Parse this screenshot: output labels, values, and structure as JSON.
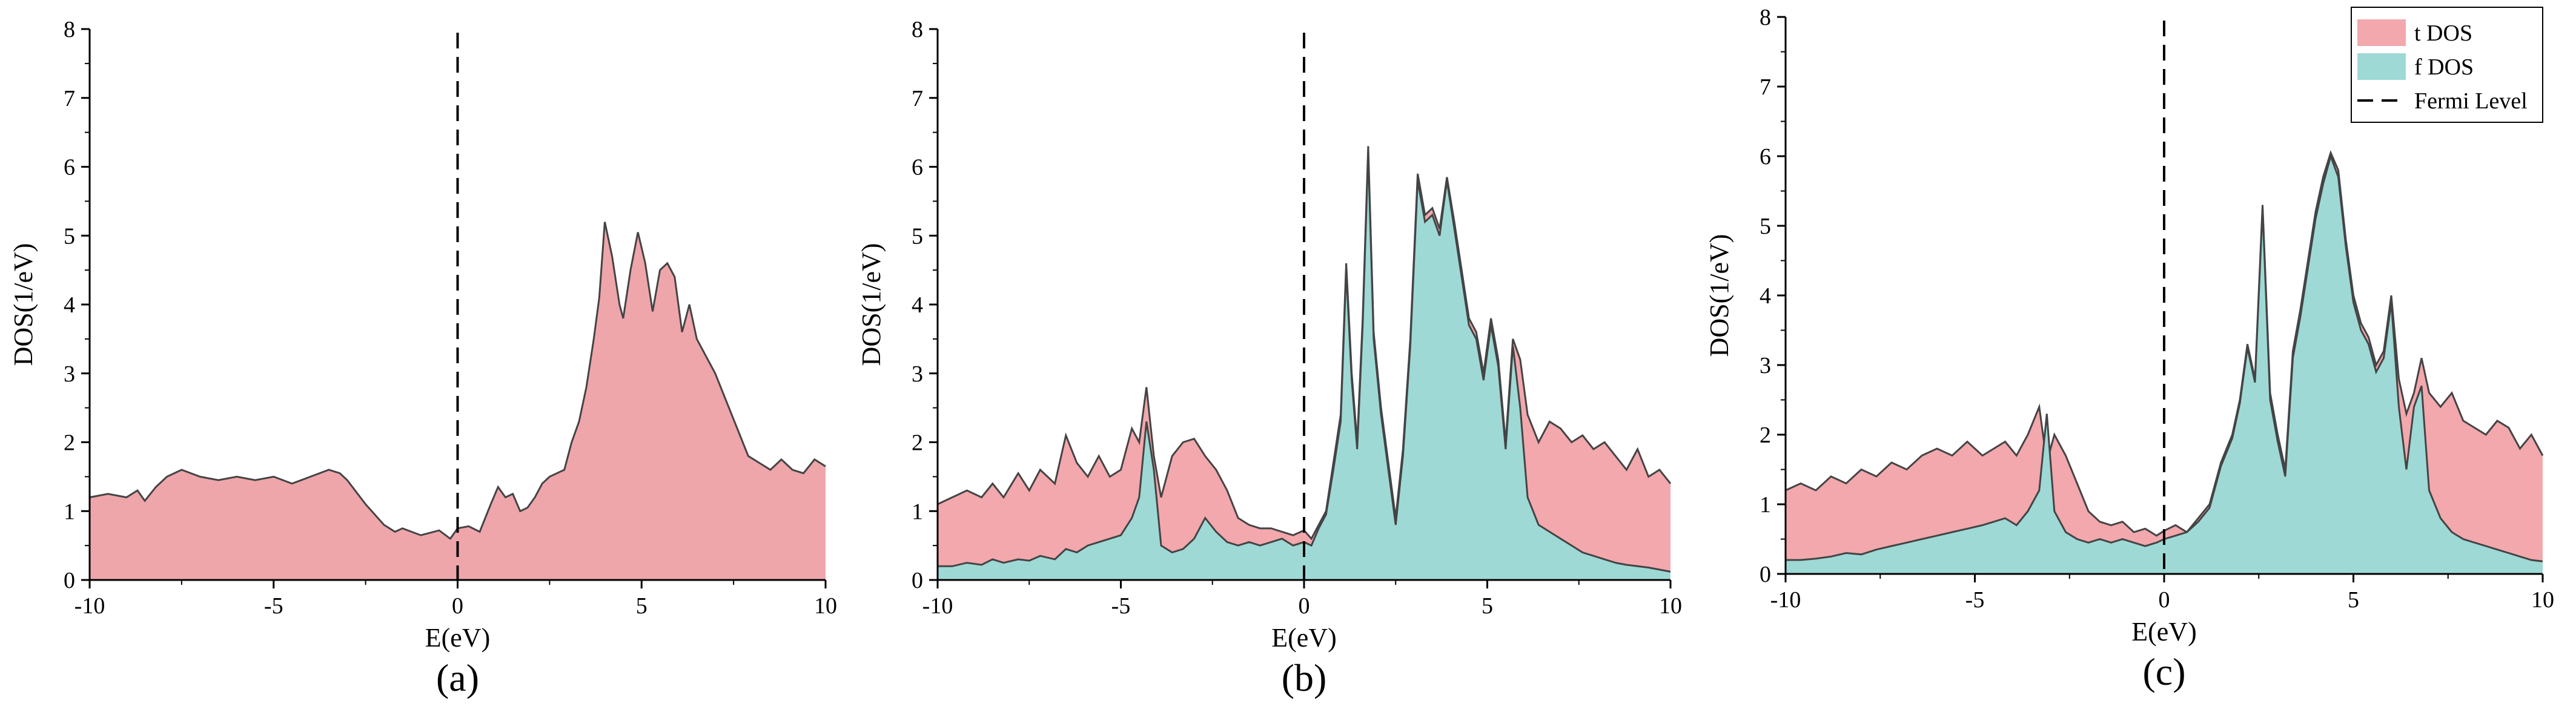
{
  "chart_data": [
    {
      "type": "area",
      "panel_label": "(a)",
      "xlabel": "E(eV)",
      "ylabel": "DOS(1/eV)",
      "xlim": [
        -10,
        10
      ],
      "ylim": [
        0,
        8
      ],
      "xticks": [
        -10,
        -5,
        0,
        5,
        10
      ],
      "yticks": [
        0,
        1,
        2,
        3,
        4,
        5,
        6,
        7,
        8
      ],
      "fermi_level": 0,
      "grid": false,
      "series": [
        {
          "key": "t",
          "color": "#eea6ab",
          "x": [
            -10,
            -9.5,
            -9,
            -8.7,
            -8.5,
            -8.2,
            -7.9,
            -7.5,
            -7,
            -6.5,
            -6,
            -5.5,
            -5,
            -4.5,
            -4,
            -3.5,
            -3.2,
            -3,
            -2.5,
            -2,
            -1.7,
            -1.5,
            -1,
            -0.5,
            -0.2,
            0,
            0.3,
            0.6,
            0.9,
            1.1,
            1.3,
            1.5,
            1.7,
            1.9,
            2.1,
            2.3,
            2.5,
            2.7,
            2.9,
            3.1,
            3.3,
            3.5,
            3.7,
            3.85,
            4.0,
            4.2,
            4.4,
            4.5,
            4.7,
            4.9,
            5.1,
            5.3,
            5.5,
            5.7,
            5.9,
            6.1,
            6.3,
            6.5,
            6.7,
            7.0,
            7.3,
            7.6,
            7.9,
            8.2,
            8.5,
            8.8,
            9.1,
            9.4,
            9.7,
            10
          ],
          "values": [
            1.2,
            1.25,
            1.2,
            1.3,
            1.15,
            1.35,
            1.5,
            1.6,
            1.5,
            1.45,
            1.5,
            1.45,
            1.5,
            1.4,
            1.5,
            1.6,
            1.55,
            1.45,
            1.1,
            0.8,
            0.7,
            0.75,
            0.65,
            0.72,
            0.6,
            0.75,
            0.78,
            0.7,
            1.1,
            1.35,
            1.2,
            1.25,
            1.0,
            1.05,
            1.2,
            1.4,
            1.5,
            1.55,
            1.6,
            2.0,
            2.3,
            2.8,
            3.5,
            4.1,
            5.2,
            4.7,
            4.0,
            3.8,
            4.5,
            5.05,
            4.6,
            3.9,
            4.5,
            4.6,
            4.4,
            3.6,
            4.0,
            3.5,
            3.3,
            3.0,
            2.6,
            2.2,
            1.8,
            1.7,
            1.6,
            1.75,
            1.6,
            1.55,
            1.75,
            1.65
          ]
        }
      ]
    },
    {
      "type": "area",
      "panel_label": "(b)",
      "xlabel": "E(eV)",
      "ylabel": "DOS(1/eV)",
      "xlim": [
        -10,
        10
      ],
      "ylim": [
        0,
        8
      ],
      "xticks": [
        -10,
        -5,
        0,
        5,
        10
      ],
      "yticks": [
        0,
        1,
        2,
        3,
        4,
        5,
        6,
        7,
        8
      ],
      "fermi_level": 0,
      "grid": false,
      "series": [
        {
          "key": "t",
          "color": "#f2a8ad",
          "x": [
            -10,
            -9.6,
            -9.2,
            -8.8,
            -8.5,
            -8.2,
            -7.8,
            -7.5,
            -7.2,
            -6.8,
            -6.5,
            -6.2,
            -5.9,
            -5.6,
            -5.3,
            -5.0,
            -4.7,
            -4.5,
            -4.3,
            -4.1,
            -3.9,
            -3.6,
            -3.3,
            -3.0,
            -2.7,
            -2.4,
            -2.1,
            -1.8,
            -1.5,
            -1.2,
            -0.9,
            -0.6,
            -0.3,
            0,
            0.2,
            0.4,
            0.6,
            0.8,
            1.0,
            1.15,
            1.3,
            1.45,
            1.6,
            1.75,
            1.9,
            2.1,
            2.3,
            2.5,
            2.7,
            2.9,
            3.1,
            3.3,
            3.5,
            3.7,
            3.9,
            4.1,
            4.3,
            4.5,
            4.7,
            4.9,
            5.1,
            5.3,
            5.5,
            5.7,
            5.9,
            6.1,
            6.4,
            6.7,
            7.0,
            7.3,
            7.6,
            7.9,
            8.2,
            8.5,
            8.8,
            9.1,
            9.4,
            9.7,
            10
          ],
          "values": [
            1.1,
            1.2,
            1.3,
            1.2,
            1.4,
            1.2,
            1.55,
            1.3,
            1.6,
            1.4,
            2.1,
            1.7,
            1.5,
            1.8,
            1.5,
            1.6,
            2.2,
            2.0,
            2.8,
            1.8,
            1.2,
            1.8,
            2.0,
            2.05,
            1.8,
            1.6,
            1.3,
            0.9,
            0.8,
            0.75,
            0.75,
            0.7,
            0.65,
            0.72,
            0.6,
            0.8,
            1.0,
            1.7,
            2.4,
            4.6,
            3.0,
            2.0,
            3.8,
            6.3,
            3.6,
            2.5,
            1.7,
            0.9,
            1.9,
            3.5,
            5.9,
            5.3,
            5.4,
            5.1,
            5.85,
            5.2,
            4.5,
            3.8,
            3.6,
            3.0,
            3.8,
            3.2,
            2.0,
            3.5,
            3.2,
            2.4,
            2.0,
            2.3,
            2.2,
            2.0,
            2.1,
            1.9,
            2.0,
            1.8,
            1.6,
            1.9,
            1.5,
            1.6,
            1.4
          ]
        },
        {
          "key": "f",
          "color": "#9ed9d6",
          "x": [
            -10,
            -9.6,
            -9.2,
            -8.8,
            -8.5,
            -8.2,
            -7.8,
            -7.5,
            -7.2,
            -6.8,
            -6.5,
            -6.2,
            -5.9,
            -5.6,
            -5.3,
            -5.0,
            -4.7,
            -4.5,
            -4.3,
            -4.1,
            -3.9,
            -3.6,
            -3.3,
            -3.0,
            -2.7,
            -2.4,
            -2.1,
            -1.8,
            -1.5,
            -1.2,
            -0.9,
            -0.6,
            -0.3,
            0,
            0.2,
            0.4,
            0.6,
            0.8,
            1.0,
            1.15,
            1.3,
            1.45,
            1.6,
            1.75,
            1.9,
            2.1,
            2.3,
            2.5,
            2.7,
            2.9,
            3.1,
            3.3,
            3.5,
            3.7,
            3.9,
            4.1,
            4.3,
            4.5,
            4.7,
            4.9,
            5.1,
            5.3,
            5.5,
            5.7,
            5.9,
            6.1,
            6.4,
            6.7,
            7.0,
            7.3,
            7.6,
            7.9,
            8.2,
            8.5,
            8.8,
            9.1,
            9.4,
            9.7,
            10
          ],
          "values": [
            0.2,
            0.2,
            0.25,
            0.22,
            0.3,
            0.25,
            0.3,
            0.28,
            0.35,
            0.3,
            0.45,
            0.4,
            0.5,
            0.55,
            0.6,
            0.65,
            0.9,
            1.2,
            2.3,
            1.6,
            0.5,
            0.4,
            0.45,
            0.6,
            0.9,
            0.7,
            0.55,
            0.5,
            0.55,
            0.5,
            0.55,
            0.6,
            0.5,
            0.55,
            0.5,
            0.75,
            0.95,
            1.6,
            2.3,
            4.5,
            2.9,
            1.9,
            3.7,
            6.2,
            3.5,
            2.4,
            1.6,
            0.8,
            1.8,
            3.4,
            5.8,
            5.2,
            5.3,
            5.0,
            5.8,
            5.1,
            4.4,
            3.7,
            3.5,
            2.9,
            3.7,
            3.1,
            1.9,
            3.4,
            2.5,
            1.2,
            0.8,
            0.7,
            0.6,
            0.5,
            0.4,
            0.35,
            0.3,
            0.25,
            0.22,
            0.2,
            0.18,
            0.15,
            0.12
          ]
        }
      ]
    },
    {
      "type": "area",
      "panel_label": "(c)",
      "xlabel": "E(eV)",
      "ylabel": "DOS(1/eV)",
      "xlim": [
        -10,
        10
      ],
      "ylim": [
        0,
        8
      ],
      "xticks": [
        -10,
        -5,
        0,
        5,
        10
      ],
      "yticks": [
        0,
        1,
        2,
        3,
        4,
        5,
        6,
        7,
        8
      ],
      "fermi_level": 0,
      "grid": false,
      "legend": {
        "placement": "top-right",
        "entries": [
          {
            "label": "t DOS",
            "kind": "patch",
            "color": "#f2a8ad"
          },
          {
            "label": "f DOS",
            "kind": "patch",
            "color": "#9ed9d6"
          },
          {
            "label": "Fermi Level",
            "kind": "dashed-line",
            "color": "#000000"
          }
        ]
      },
      "series": [
        {
          "key": "t",
          "color": "#f2a8ad",
          "x": [
            -10,
            -9.6,
            -9.2,
            -8.8,
            -8.4,
            -8.0,
            -7.6,
            -7.2,
            -6.8,
            -6.4,
            -6.0,
            -5.6,
            -5.2,
            -4.8,
            -4.5,
            -4.2,
            -3.9,
            -3.6,
            -3.3,
            -3.1,
            -2.9,
            -2.6,
            -2.3,
            -2.0,
            -1.7,
            -1.4,
            -1.1,
            -0.8,
            -0.5,
            -0.2,
            0,
            0.3,
            0.6,
            0.9,
            1.2,
            1.5,
            1.8,
            2.0,
            2.2,
            2.4,
            2.6,
            2.8,
            3.0,
            3.2,
            3.4,
            3.6,
            3.8,
            4.0,
            4.2,
            4.4,
            4.6,
            4.8,
            5.0,
            5.2,
            5.4,
            5.6,
            5.8,
            6.0,
            6.2,
            6.4,
            6.6,
            6.8,
            7.0,
            7.3,
            7.6,
            7.9,
            8.2,
            8.5,
            8.8,
            9.1,
            9.4,
            9.7,
            10
          ],
          "values": [
            1.2,
            1.3,
            1.2,
            1.4,
            1.3,
            1.5,
            1.4,
            1.6,
            1.5,
            1.7,
            1.8,
            1.7,
            1.9,
            1.7,
            1.8,
            1.9,
            1.7,
            2.0,
            2.4,
            1.6,
            2.0,
            1.7,
            1.3,
            0.9,
            0.75,
            0.7,
            0.75,
            0.6,
            0.65,
            0.55,
            0.62,
            0.7,
            0.6,
            0.8,
            1.0,
            1.6,
            2.0,
            2.5,
            3.3,
            2.8,
            5.3,
            2.6,
            2.0,
            1.5,
            3.2,
            3.8,
            4.5,
            5.2,
            5.7,
            6.05,
            5.8,
            4.8,
            4.0,
            3.6,
            3.4,
            3.0,
            3.2,
            4.0,
            2.8,
            2.3,
            2.6,
            3.1,
            2.6,
            2.4,
            2.6,
            2.2,
            2.1,
            2.0,
            2.2,
            2.1,
            1.8,
            2.0,
            1.7
          ]
        },
        {
          "key": "f",
          "color": "#9ed9d6",
          "x": [
            -10,
            -9.6,
            -9.2,
            -8.8,
            -8.4,
            -8.0,
            -7.6,
            -7.2,
            -6.8,
            -6.4,
            -6.0,
            -5.6,
            -5.2,
            -4.8,
            -4.5,
            -4.2,
            -3.9,
            -3.6,
            -3.3,
            -3.1,
            -2.9,
            -2.6,
            -2.3,
            -2.0,
            -1.7,
            -1.4,
            -1.1,
            -0.8,
            -0.5,
            -0.2,
            0,
            0.3,
            0.6,
            0.9,
            1.2,
            1.5,
            1.8,
            2.0,
            2.2,
            2.4,
            2.6,
            2.8,
            3.0,
            3.2,
            3.4,
            3.6,
            3.8,
            4.0,
            4.2,
            4.4,
            4.6,
            4.8,
            5.0,
            5.2,
            5.4,
            5.6,
            5.8,
            6.0,
            6.2,
            6.4,
            6.6,
            6.8,
            7.0,
            7.3,
            7.6,
            7.9,
            8.2,
            8.5,
            8.8,
            9.1,
            9.4,
            9.7,
            10
          ],
          "values": [
            0.2,
            0.2,
            0.22,
            0.25,
            0.3,
            0.28,
            0.35,
            0.4,
            0.45,
            0.5,
            0.55,
            0.6,
            0.65,
            0.7,
            0.75,
            0.8,
            0.7,
            0.9,
            1.2,
            2.3,
            0.9,
            0.6,
            0.5,
            0.45,
            0.5,
            0.45,
            0.5,
            0.45,
            0.4,
            0.45,
            0.5,
            0.55,
            0.6,
            0.75,
            0.95,
            1.55,
            1.95,
            2.45,
            3.25,
            2.75,
            5.25,
            2.5,
            1.9,
            1.4,
            3.1,
            3.7,
            4.4,
            5.1,
            5.6,
            6.0,
            5.7,
            4.7,
            3.9,
            3.5,
            3.3,
            2.9,
            3.1,
            3.9,
            2.4,
            1.5,
            2.4,
            2.7,
            1.2,
            0.8,
            0.6,
            0.5,
            0.45,
            0.4,
            0.35,
            0.3,
            0.25,
            0.2,
            0.18
          ]
        }
      ]
    }
  ]
}
